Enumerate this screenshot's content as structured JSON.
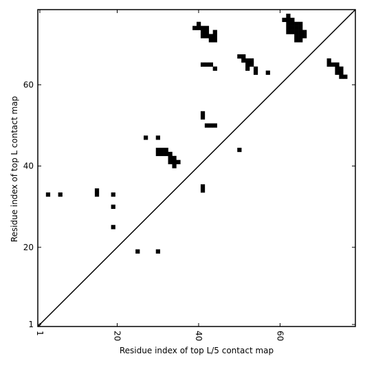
{
  "chart_data": {
    "type": "scatter",
    "xlabel": "Residue index of top L/5 contact map",
    "ylabel": "Residue index of top L contact map",
    "xlim": [
      0.5,
      78.5
    ],
    "ylim": [
      0.5,
      78.5
    ],
    "xticks": [
      1,
      20,
      40,
      60
    ],
    "yticks": [
      1,
      20,
      40,
      60
    ],
    "color": "#000000",
    "x": [
      3,
      6,
      15,
      15,
      19,
      19,
      19,
      25,
      30,
      27,
      30,
      30,
      30,
      31,
      31,
      32,
      32,
      33,
      33,
      33,
      34,
      34,
      34,
      35,
      41,
      41,
      42,
      43,
      44,
      50,
      41,
      41,
      40,
      39,
      40,
      41,
      42,
      41,
      42,
      41,
      42,
      43,
      44,
      44,
      43,
      44,
      41,
      42,
      43,
      44,
      50,
      51,
      51,
      52,
      53,
      52,
      53,
      52,
      54,
      54,
      57,
      61,
      62,
      62,
      63,
      62,
      63,
      64,
      65,
      62,
      63,
      64,
      65,
      62,
      63,
      64,
      65,
      66,
      64,
      65,
      66,
      64,
      65,
      72,
      72,
      73,
      74,
      74,
      75,
      74,
      75,
      75,
      76
    ],
    "y": [
      33,
      33,
      33,
      34,
      33,
      30,
      25,
      19,
      19,
      47,
      47,
      43,
      44,
      43,
      44,
      43,
      44,
      43,
      42,
      41,
      42,
      41,
      40,
      41,
      52,
      53,
      50,
      50,
      50,
      44,
      34,
      35,
      75,
      74,
      74,
      74,
      74,
      73,
      73,
      72,
      72,
      72,
      72,
      73,
      71,
      71,
      65,
      65,
      65,
      64,
      67,
      67,
      66,
      66,
      66,
      65,
      65,
      64,
      64,
      63,
      63,
      76,
      77,
      76,
      76,
      75,
      75,
      75,
      75,
      74,
      74,
      74,
      74,
      73,
      73,
      73,
      73,
      73,
      72,
      72,
      72,
      71,
      71,
      66,
      65,
      65,
      65,
      64,
      64,
      63,
      63,
      62,
      62
    ]
  }
}
